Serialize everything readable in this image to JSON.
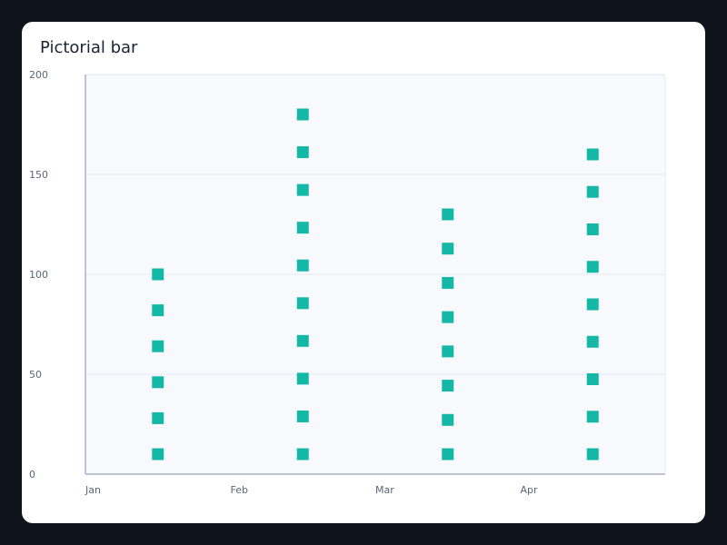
{
  "chart_data": {
    "type": "bar",
    "style": "pictorial",
    "title": "Pictorial bar",
    "categories": [
      "Jan",
      "Feb",
      "Mar",
      "Apr"
    ],
    "series": [
      {
        "values": [
          110,
          190,
          140,
          170
        ],
        "symbol": "square",
        "color": "#14b8a6"
      }
    ],
    "ylim": [
      0,
      200
    ],
    "yticks": [
      0,
      50,
      100,
      150,
      200
    ],
    "xlabel": "",
    "ylabel": "",
    "grid": true,
    "symbol_counts": [
      6,
      10,
      8,
      9
    ]
  },
  "colors": {
    "background": "#0e121b",
    "card": "#ffffff",
    "plot_area": "#f7f9fd",
    "gridline": "#e6ebf3",
    "axis": "#aab4c6",
    "symbol": "#14b8a6"
  }
}
